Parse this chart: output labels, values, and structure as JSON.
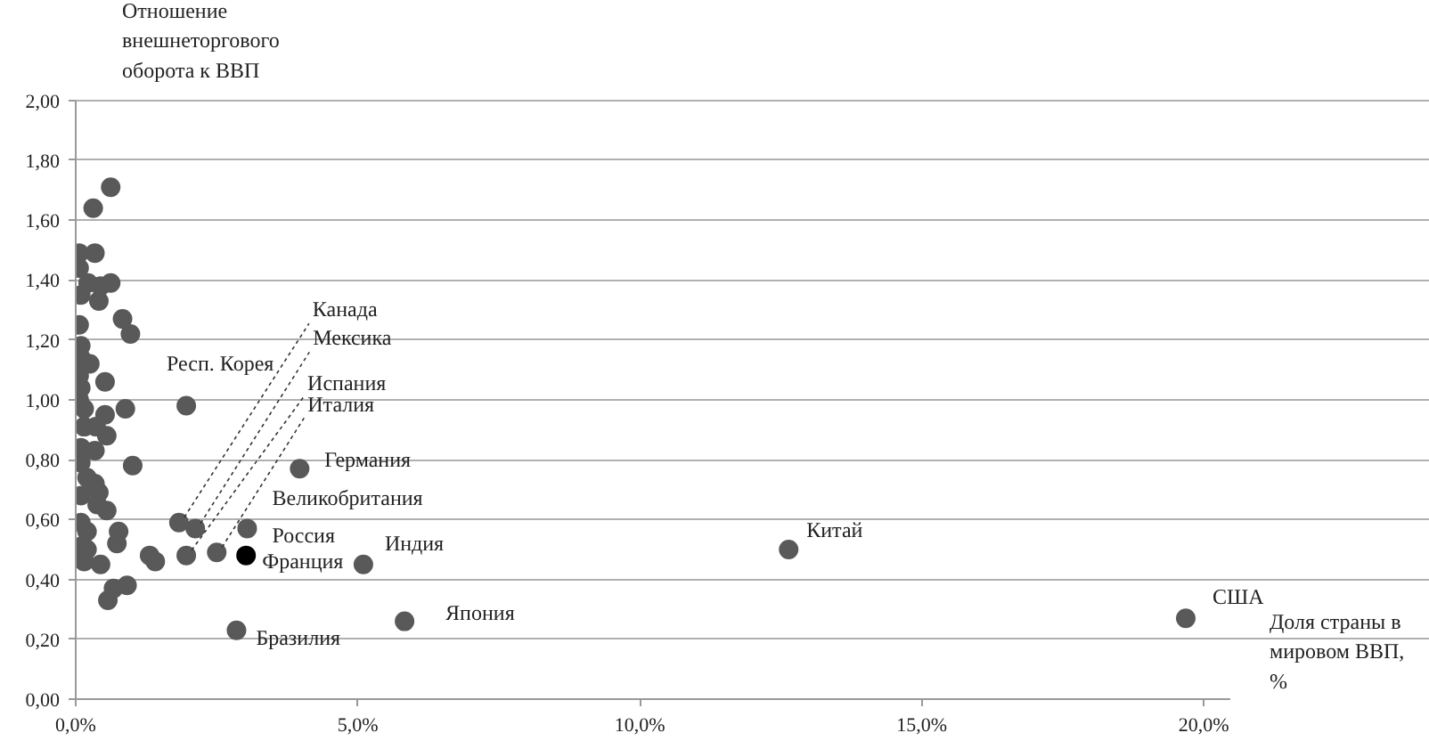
{
  "chart_data": {
    "type": "scatter",
    "xlabel": "Доля страны в мировом ВВП, %",
    "ylabel": "Отношение внешнеторгового оборота к ВВП",
    "x": [
      0.62,
      0.31,
      0.06,
      0.34,
      0.06,
      0.22,
      0.44,
      0.62,
      0.09,
      0.41,
      0.83,
      0.97,
      0.06,
      0.09,
      0.09,
      0.25,
      0.06,
      0.09,
      0.52,
      0.06,
      0.15,
      0.88,
      0.52,
      0.15,
      0.36,
      0.55,
      0.09,
      0.34,
      0.09,
      1.01,
      0.2,
      0.34,
      0.09,
      0.41,
      0.38,
      0.55,
      0.09,
      0.2,
      0.76,
      0.73,
      0.09,
      0.2,
      0.15,
      0.44,
      1.31,
      1.41,
      0.67,
      0.91,
      0.57,
      1.96,
      1.83,
      2.12,
      1.96,
      2.5,
      3.97,
      3.04,
      3.02,
      5.1,
      12.64,
      5.83,
      2.85,
      19.68
    ],
    "values": [
      1.71,
      1.64,
      1.49,
      1.49,
      1.44,
      1.39,
      1.38,
      1.39,
      1.35,
      1.33,
      1.27,
      1.22,
      1.25,
      1.18,
      1.14,
      1.12,
      1.08,
      1.04,
      1.06,
      1.0,
      0.97,
      0.97,
      0.95,
      0.91,
      0.91,
      0.88,
      0.84,
      0.83,
      0.79,
      0.78,
      0.74,
      0.72,
      0.68,
      0.69,
      0.65,
      0.63,
      0.59,
      0.56,
      0.56,
      0.52,
      0.51,
      0.5,
      0.46,
      0.45,
      0.48,
      0.46,
      0.37,
      0.38,
      0.33,
      0.98,
      0.59,
      0.57,
      0.48,
      0.49,
      0.77,
      0.57,
      0.48,
      0.45,
      0.5,
      0.26,
      0.23,
      0.27
    ],
    "colors": [
      "#595959",
      "#595959",
      "#595959",
      "#595959",
      "#595959",
      "#595959",
      "#595959",
      "#595959",
      "#595959",
      "#595959",
      "#595959",
      "#595959",
      "#595959",
      "#595959",
      "#595959",
      "#595959",
      "#595959",
      "#595959",
      "#595959",
      "#595959",
      "#595959",
      "#595959",
      "#595959",
      "#595959",
      "#595959",
      "#595959",
      "#595959",
      "#595959",
      "#595959",
      "#595959",
      "#595959",
      "#595959",
      "#595959",
      "#595959",
      "#595959",
      "#595959",
      "#595959",
      "#595959",
      "#595959",
      "#595959",
      "#595959",
      "#595959",
      "#595959",
      "#595959",
      "#595959",
      "#595959",
      "#595959",
      "#595959",
      "#595959",
      "#595959",
      "#595959",
      "#595959",
      "#595959",
      "#595959",
      "#595959",
      "#595959",
      "#000000",
      "#595959",
      "#595959",
      "#595959",
      "#595959",
      "#595959"
    ],
    "xlim": [
      0,
      20.47
    ],
    "ylim": [
      0,
      2
    ],
    "xticks": [
      {
        "value": 0,
        "label": "0,0%"
      },
      {
        "value": 5,
        "label": "5,0%"
      },
      {
        "value": 10,
        "label": "10,0%"
      },
      {
        "value": 15,
        "label": "15,0%"
      },
      {
        "value": 20,
        "label": "20,0%"
      }
    ],
    "yticks": [
      {
        "value": 0,
        "label": "0,00"
      },
      {
        "value": 0.2,
        "label": "0,20"
      },
      {
        "value": 0.4,
        "label": "0,40"
      },
      {
        "value": 0.6,
        "label": "0,60"
      },
      {
        "value": 0.8,
        "label": "0,80"
      },
      {
        "value": 1.0,
        "label": "1,00"
      },
      {
        "value": 1.2,
        "label": "1,20"
      },
      {
        "value": 1.4,
        "label": "1,40"
      },
      {
        "value": 1.6,
        "label": "1,60"
      },
      {
        "value": 1.8,
        "label": "1,80"
      },
      {
        "value": 2.0,
        "label": "2,00"
      }
    ],
    "grid": "y",
    "marker": "circle",
    "annotations": [
      {
        "text": "Канада",
        "x": 1.83,
        "y": 0.59
      },
      {
        "text": "Мексика",
        "x": 2.12,
        "y": 0.57
      },
      {
        "text": "Испания",
        "x": 1.96,
        "y": 0.48
      },
      {
        "text": "Италия",
        "x": 2.5,
        "y": 0.49
      },
      {
        "text": "Респ. Корея",
        "x": 1.96,
        "y": 0.98
      },
      {
        "text": "Германия",
        "x": 3.97,
        "y": 0.77
      },
      {
        "text": "Великобритания",
        "x": 3.04,
        "y": 0.57
      },
      {
        "text": "Россия",
        "x": 3.04,
        "y": 0.57
      },
      {
        "text": "Франция",
        "x": 3.02,
        "y": 0.48
      },
      {
        "text": "Индия",
        "x": 5.1,
        "y": 0.45
      },
      {
        "text": "Китай",
        "x": 12.64,
        "y": 0.5
      },
      {
        "text": "Япония",
        "x": 5.83,
        "y": 0.26
      },
      {
        "text": "Бразилия",
        "x": 2.85,
        "y": 0.23
      },
      {
        "text": "США",
        "x": 19.68,
        "y": 0.27
      }
    ]
  }
}
